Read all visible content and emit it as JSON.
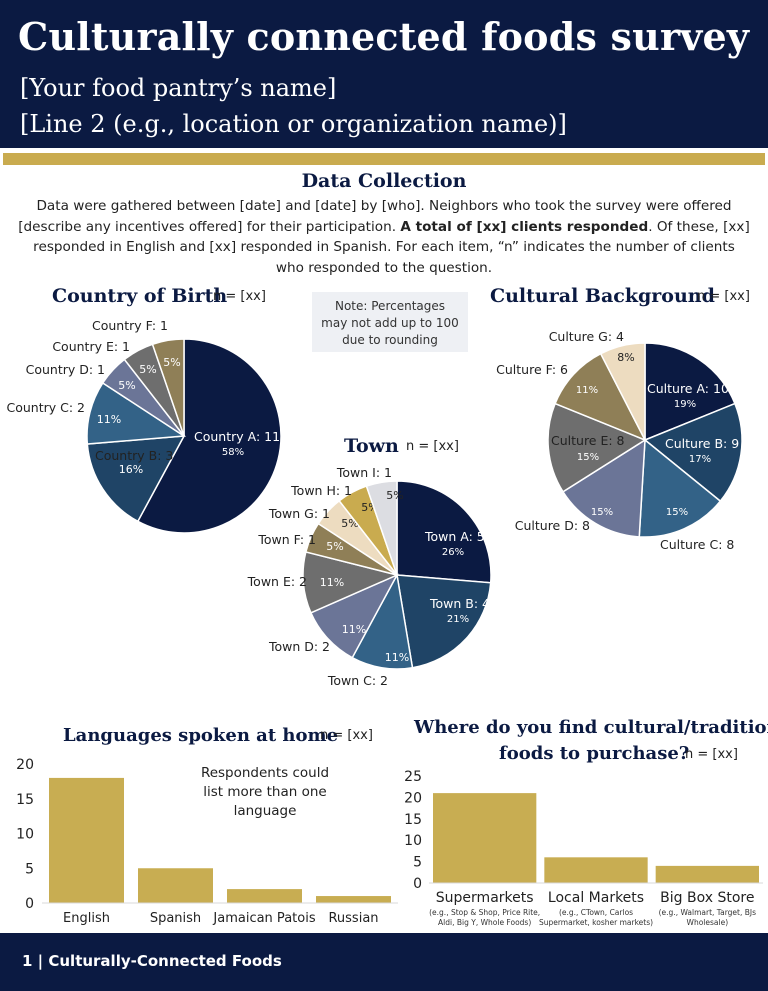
{
  "header": {
    "title": "Culturally connected foods survey",
    "subtitle1": "[Your food pantry’s name]",
    "subtitle2": "[Line 2 (e.g., location or organization name)]"
  },
  "data_collection": {
    "title": "Data Collection",
    "line1": "Data were gathered between [date] and [date] by [who]. Neighbors who took the survey were offered",
    "line2": "[describe any incentives offered] for their participation. ",
    "line2_bold": "A total of [xx] clients responded",
    "line2_end": ". Of these, [xx]",
    "line3": "responded in English and [xx] responded in Spanish. For each item, “n” indicates the number of clients",
    "line4": "who responded to the question."
  },
  "note": {
    "line1": "Note: Percentages",
    "line2": "may not add up to 100",
    "line3": "due to rounding"
  },
  "bar_note": {
    "line1": "Respondents could",
    "line2": "list more than one",
    "line3": "language"
  },
  "footer": {
    "text": "1 | Culturally-Connected Foods"
  },
  "colors": {
    "navy": "#0b1a42",
    "gold": "#c9ab4f",
    "slate": "#1f4466",
    "steel": "#336287",
    "periwinkle": "#6b7597",
    "gray": "#6e6e6e",
    "olive": "#8f7f57",
    "cream": "#eddcc0",
    "lightgray": "#dcdde2",
    "bar_gold": "#c8ad52"
  },
  "chart_data": [
    {
      "type": "pie",
      "title": "Country of Birth",
      "n_label": "n = [xx]",
      "slices": [
        {
          "label": "Country A: 11",
          "value": 11,
          "pct": "58%",
          "color": "#0b1a42"
        },
        {
          "label": "Country B: 3",
          "value": 3,
          "pct": "16%",
          "color": "#1f4466"
        },
        {
          "label": "Country C: 2",
          "value": 2,
          "pct": "11%",
          "color": "#336287"
        },
        {
          "label": "Country D: 1",
          "value": 1,
          "pct": "5%",
          "color": "#6b7597"
        },
        {
          "label": "Country E: 1",
          "value": 1,
          "pct": "5%",
          "color": "#6e6e6e"
        },
        {
          "label": "Country F: 1",
          "value": 1,
          "pct": "5%",
          "color": "#8f7f57"
        }
      ]
    },
    {
      "type": "pie",
      "title": "Cultural Background",
      "n_label": "n = [xx]",
      "slices": [
        {
          "label": "Culture A: 10",
          "value": 10,
          "pct": "19%",
          "color": "#0b1a42"
        },
        {
          "label": "Culture B: 9",
          "value": 9,
          "pct": "17%",
          "color": "#1f4466"
        },
        {
          "label": "Culture C: 8",
          "value": 8,
          "pct": "15%",
          "color": "#336287"
        },
        {
          "label": "Culture D: 8",
          "value": 8,
          "pct": "15%",
          "color": "#6b7597"
        },
        {
          "label": "Culture E: 8",
          "value": 8,
          "pct": "15%",
          "color": "#6e6e6e"
        },
        {
          "label": "Culture F: 6",
          "value": 6,
          "pct": "11%",
          "color": "#8f7f57"
        },
        {
          "label": "Culture G: 4",
          "value": 4,
          "pct": "8%",
          "color": "#eddcc0"
        }
      ]
    },
    {
      "type": "pie",
      "title": "Town",
      "n_label": "n = [xx]",
      "slices": [
        {
          "label": "Town A: 5",
          "value": 5,
          "pct": "26%",
          "color": "#0b1a42"
        },
        {
          "label": "Town B: 4",
          "value": 4,
          "pct": "21%",
          "color": "#1f4466"
        },
        {
          "label": "Town C: 2",
          "value": 2,
          "pct": "11%",
          "color": "#336287"
        },
        {
          "label": "Town D: 2",
          "value": 2,
          "pct": "11%",
          "color": "#6b7597"
        },
        {
          "label": "Town E: 2",
          "value": 2,
          "pct": "11%",
          "color": "#6e6e6e"
        },
        {
          "label": "Town F: 1",
          "value": 1,
          "pct": "5%",
          "color": "#8f7f57"
        },
        {
          "label": "Town G: 1",
          "value": 1,
          "pct": "5%",
          "color": "#eddcc0"
        },
        {
          "label": "Town H: 1",
          "value": 1,
          "pct": "5%",
          "color": "#c9ab4f"
        },
        {
          "label": "Town I: 1",
          "value": 1,
          "pct": "5%",
          "color": "#dcdde2"
        }
      ]
    },
    {
      "type": "bar",
      "title": "Languages spoken at home",
      "n_label": "n = [xx]",
      "categories": [
        "English",
        "Spanish",
        "Jamaican Patois",
        "Russian"
      ],
      "values": [
        18,
        5,
        2,
        1
      ],
      "ylim": [
        0,
        20
      ],
      "yticks": [
        0,
        5,
        10,
        15,
        20
      ]
    },
    {
      "type": "bar",
      "title": "Where do you find cultural/traditional foods to purchase?",
      "title_line1": "Where do you find cultural/traditional",
      "title_line2": "foods to purchase?",
      "n_label": "n = [xx]",
      "categories": [
        "Supermarkets",
        "Local Markets",
        "Big Box Store"
      ],
      "sublabels": [
        [
          "(e.g., Stop & Shop, Price Rite,",
          "Aldi, Big Y, Whole Foods)"
        ],
        [
          "(e.g., CTown, Carlos",
          "Supermarket, kosher markets)"
        ],
        [
          "(e.g., Walmart, Target, BJs",
          "Wholesale)"
        ]
      ],
      "values": [
        21,
        6,
        4
      ],
      "ylim": [
        0,
        25
      ],
      "yticks": [
        0,
        5,
        10,
        15,
        20,
        25
      ]
    }
  ]
}
